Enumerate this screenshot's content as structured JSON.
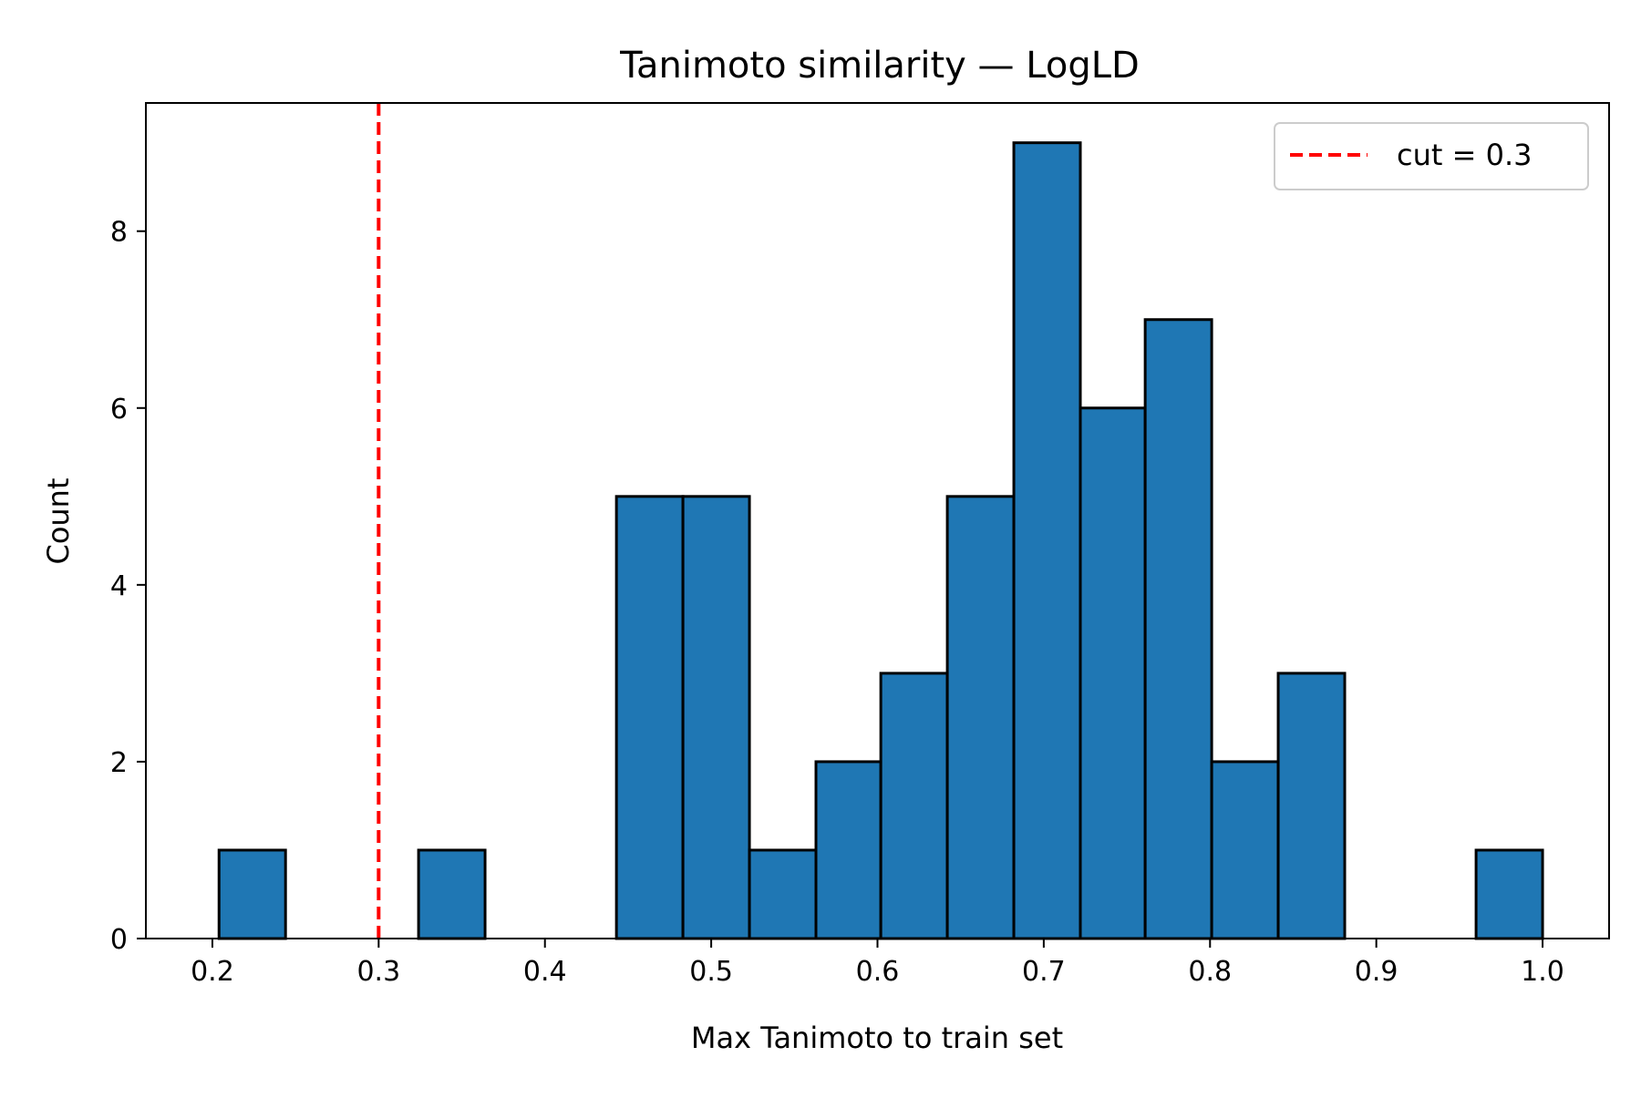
{
  "chart_data": {
    "type": "bar",
    "subtype": "histogram",
    "title": "Tanimoto similarity — LogLD",
    "xlabel": "Max Tanimoto to train set",
    "ylabel": "Count",
    "xlim": [
      0.16,
      1.04
    ],
    "ylim": [
      0,
      9.45
    ],
    "grid": false,
    "x_ticks": [
      "0.2",
      "0.3",
      "0.4",
      "0.5",
      "0.6",
      "0.7",
      "0.8",
      "0.9",
      "1.0"
    ],
    "x_tick_values": [
      0.2,
      0.3,
      0.4,
      0.5,
      0.6,
      0.7,
      0.8,
      0.9,
      1.0
    ],
    "y_ticks": [
      "0",
      "2",
      "4",
      "6",
      "8"
    ],
    "y_tick_values": [
      0,
      2,
      4,
      6,
      8
    ],
    "bins": [
      {
        "x0": 0.204,
        "x1": 0.244,
        "count": 1
      },
      {
        "x0": 0.244,
        "x1": 0.284,
        "count": 0
      },
      {
        "x0": 0.284,
        "x1": 0.324,
        "count": 0
      },
      {
        "x0": 0.324,
        "x1": 0.364,
        "count": 1
      },
      {
        "x0": 0.364,
        "x1": 0.404,
        "count": 0
      },
      {
        "x0": 0.404,
        "x1": 0.443,
        "count": 0
      },
      {
        "x0": 0.443,
        "x1": 0.483,
        "count": 5
      },
      {
        "x0": 0.483,
        "x1": 0.523,
        "count": 5
      },
      {
        "x0": 0.523,
        "x1": 0.563,
        "count": 1
      },
      {
        "x0": 0.563,
        "x1": 0.602,
        "count": 2
      },
      {
        "x0": 0.602,
        "x1": 0.642,
        "count": 3
      },
      {
        "x0": 0.642,
        "x1": 0.682,
        "count": 5
      },
      {
        "x0": 0.682,
        "x1": 0.722,
        "count": 9
      },
      {
        "x0": 0.722,
        "x1": 0.761,
        "count": 6
      },
      {
        "x0": 0.761,
        "x1": 0.801,
        "count": 7
      },
      {
        "x0": 0.801,
        "x1": 0.841,
        "count": 2
      },
      {
        "x0": 0.841,
        "x1": 0.881,
        "count": 3
      },
      {
        "x0": 0.881,
        "x1": 0.92,
        "count": 0
      },
      {
        "x0": 0.92,
        "x1": 0.96,
        "count": 0
      },
      {
        "x0": 0.96,
        "x1": 1.0,
        "count": 1
      }
    ],
    "bar_color": "#1f77b4",
    "bar_edge_color": "#000000",
    "cut_line": {
      "x": 0.3,
      "label": "cut = 0.3",
      "color": "#ff0000",
      "style": "dashed"
    },
    "legend": {
      "placement": "top-right",
      "entries": [
        "cut = 0.3"
      ]
    }
  }
}
